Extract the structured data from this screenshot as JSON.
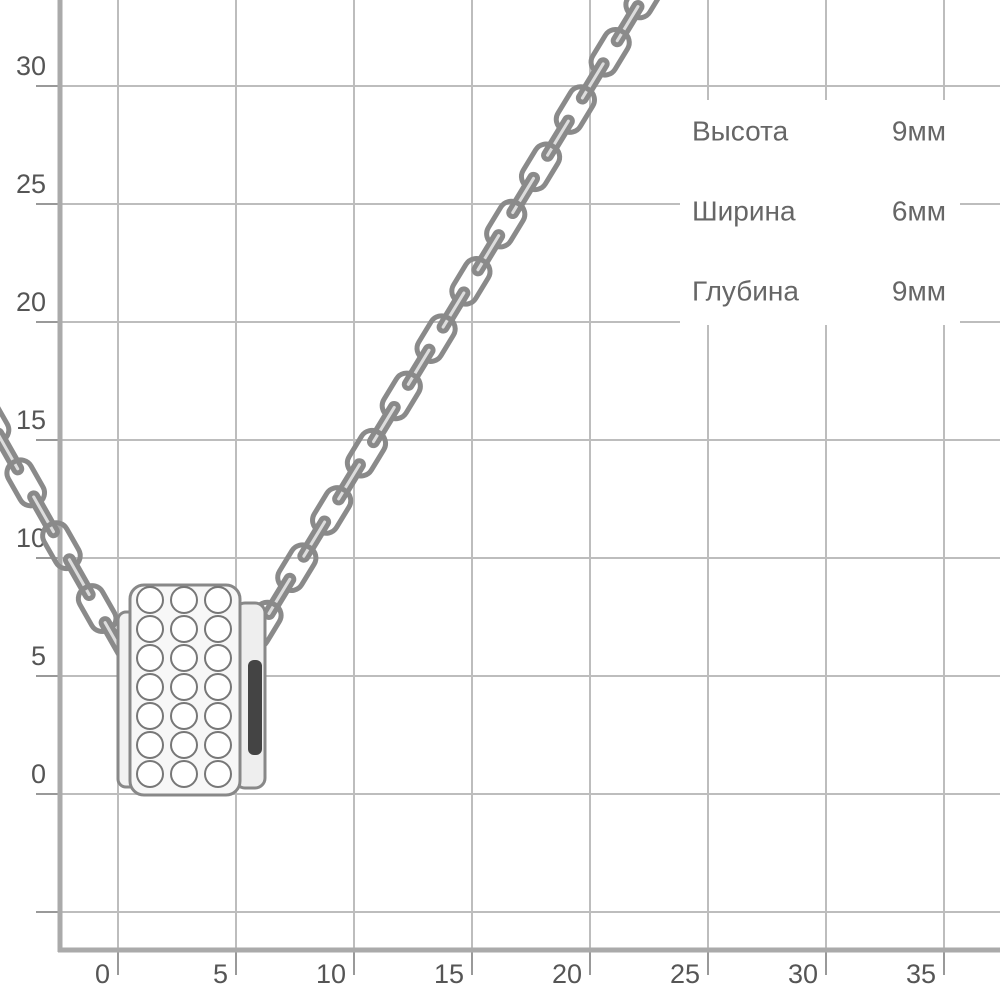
{
  "axes": {
    "x_ticks": [
      "0",
      "5",
      "10",
      "15",
      "20",
      "25",
      "30",
      "35"
    ],
    "y_ticks": [
      "0",
      "5",
      "10",
      "15",
      "20",
      "25",
      "30"
    ]
  },
  "dimensions": [
    {
      "label": "Высота",
      "value": "9мм"
    },
    {
      "label": "Ширина",
      "value": "6мм"
    },
    {
      "label": "Глубина",
      "value": "9мм"
    }
  ]
}
